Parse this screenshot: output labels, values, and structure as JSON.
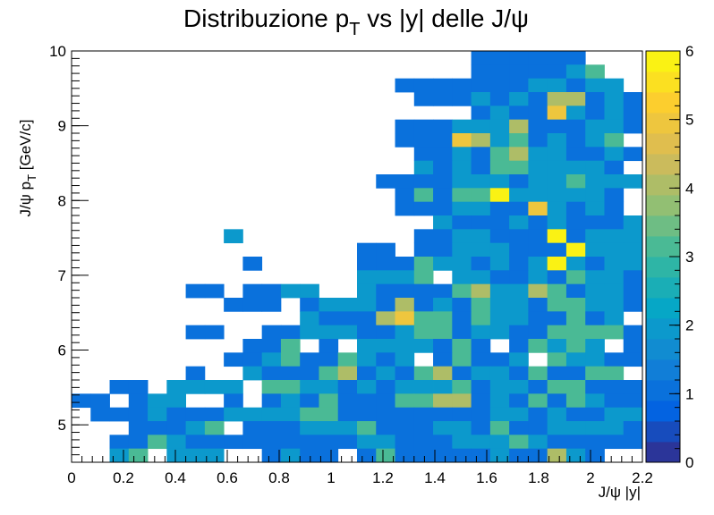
{
  "chart_data": {
    "type": "heatmap",
    "title": "Distribuzione p_{T} vs |y| delle J/ψ",
    "title_parts": {
      "pre": "Distribuzione p",
      "sub": "T",
      "post": " vs |y| delle J/ψ"
    },
    "xlabel": "J/ψ |y|",
    "ylabel": "J/ψ p_{T} [GeV/c]",
    "ylabel_parts": {
      "pre": "J/ψ p",
      "sub": "T",
      "post": " [GeV/c]"
    },
    "xlim": [
      0,
      2.2
    ],
    "ylim": [
      4.5,
      10
    ],
    "xbins": 30,
    "ybins": 30,
    "xticks": [
      "0",
      "0.2",
      "0.4",
      "0.6",
      "0.8",
      "1",
      "1.2",
      "1.4",
      "1.6",
      "1.8",
      "2",
      "2.2"
    ],
    "yticks": [
      "5",
      "6",
      "7",
      "8",
      "9",
      "10"
    ],
    "zlim": [
      0,
      6
    ],
    "zticks": [
      "0",
      "1",
      "2",
      "3",
      "4",
      "5",
      "6"
    ],
    "grid": false,
    "palette": "kBird",
    "palette_colors": [
      "#352a87",
      "#0363e1",
      "#1485d4",
      "#06a7c6",
      "#38b99e",
      "#92bf73",
      "#d9ba56",
      "#fcce2e",
      "#f9fb0e"
    ],
    "counts": [
      "000000000000000000000111111000",
      "000000000000000000000111112300",
      "000000000000000001111111221220",
      "000000000000000000111212144121",
      "000000000000000000000121152121",
      "000000000000000001112224111221",
      "000000000000000001115423121230",
      "000000000000000000112134221121",
      "000000000000000000212133222210",
      "000000000000000011112221223222",
      "000000000000000001313362222210",
      "000000000000000001112211521210",
      "000000000000000000021112121112",
      "000000002000000000112211161222",
      "000000000000000110112221116222",
      "000000000100000111322121262122",
      "000000000000000222302211213221",
      "000000110112200211113422431221",
      "000000001110122214121322133221",
      "000000000000211145331322113120",
      "000000110011222112331221133331",
      "000000000113010222213101323201",
      "000000001123113212013112032211",
      "000000100211134121341221311330",
      "001102222033221212223122133111",
      "110122001012131113344121313211",
      "011121112222331111111122121122",
      "000111230111222311122131122221",
      "001132111111111221112223211111",
      "002302220012110131111121142100"
    ]
  }
}
